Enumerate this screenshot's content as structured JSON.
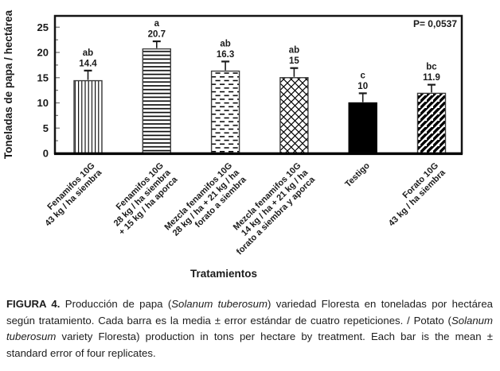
{
  "chart_data": {
    "type": "bar",
    "title": "",
    "xlabel": "Tratamientos",
    "ylabel": "Toneladas de papa / hectárea",
    "ylim": [
      0,
      27.2
    ],
    "yticks": [
      0,
      5,
      10,
      15,
      20,
      25
    ],
    "ytick_labels": [
      "0",
      "5",
      "10",
      "15",
      "20",
      "25"
    ],
    "minor_tick_step": 2.5,
    "grid": false,
    "legend": null,
    "annotation": "P= 0,0537",
    "categories": [
      [
        "Fenamifos 10G",
        "43 kg / ha siembra"
      ],
      [
        "Fenamifos 10G",
        "28 kg / ha siembra",
        "+ 15 kg / ha aporca"
      ],
      [
        "Mezcla fenamifos 10G",
        "28 kg / ha + 21 kg / ha",
        "forato a siembra"
      ],
      [
        "Mezcla fenamifos 10G",
        "14 kg / ha + 21 kg / ha",
        "forato a siembra y aporca"
      ],
      [
        "Testigo"
      ],
      [
        "Forato 10G",
        "43 kg / ha siembra"
      ]
    ],
    "values": [
      14.4,
      20.7,
      16.3,
      15,
      10,
      11.9
    ],
    "value_labels": [
      "14.4",
      "20.7",
      "16.3",
      "15",
      "10",
      "11.9"
    ],
    "sig_letters": [
      "ab",
      "a",
      "ab",
      "ab",
      "c",
      "bc"
    ],
    "errors": [
      2.0,
      1.5,
      1.9,
      1.9,
      1.9,
      1.7
    ],
    "bar_patterns": [
      "vertical-lines",
      "horizontal-lines",
      "dashes",
      "diagonal-crosshatch",
      "solid-black",
      "diagonal-stripes"
    ]
  },
  "caption": {
    "segments": [
      {
        "text": "FIGURA 4.",
        "bold": true
      },
      {
        "text": " Producción de papa ("
      },
      {
        "text": "Solanum tuberosum",
        "italic": true
      },
      {
        "text": ") variedad Floresta en toneladas por hectárea según tratamiento. Cada barra es la media ± error estándar de cuatro repeticiones. / Potato ("
      },
      {
        "text": "Solanum tuberosum",
        "italic": true
      },
      {
        "text": " variety Floresta) production in tons per hectare by treatment. Each bar is the mean ± standard error of four replicates."
      }
    ]
  },
  "colors": {
    "bar_fill_black": "#000000",
    "pattern_stroke": "#000000",
    "bar_outline": "#3d3d3d",
    "axis_box": "#141414",
    "tick": "#7a7a7a",
    "text": "#1a1a1a",
    "background": "#ffffff"
  }
}
